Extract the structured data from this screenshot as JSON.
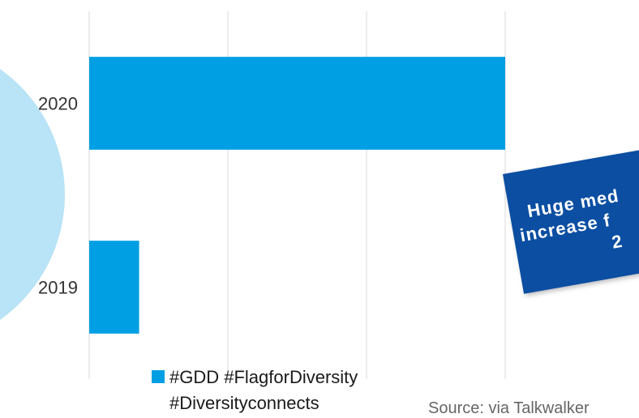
{
  "chart_data": {
    "type": "bar",
    "orientation": "horizontal",
    "categories": [
      "2020",
      "2019"
    ],
    "series": [
      {
        "name": "#GDD #FlagforDiversity #Diversityconnects",
        "values": [
          100,
          12
        ]
      }
    ],
    "xlim": [
      0,
      100
    ],
    "grid": true,
    "legend": "bottom",
    "colors": {
      "bar": "#009fe3",
      "circle": "#b9e3f6",
      "grid": "#d9d9d9",
      "callout": "#0b4ea2"
    }
  },
  "legend_lines": [
    "#GDD #FlagforDiversity",
    "#Diversityconnects"
  ],
  "callout": {
    "line1": "Huge med",
    "line2": "increase f",
    "line3": "2"
  },
  "source": "Source: via Talkwalker"
}
